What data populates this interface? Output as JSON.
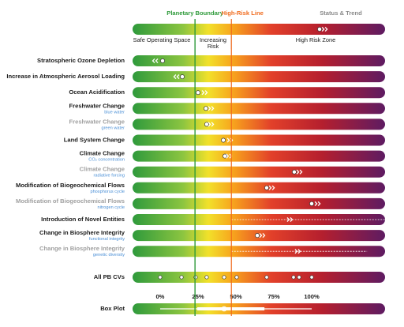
{
  "chart_data": {
    "type": "boundary-status",
    "xlim": [
      -18.2,
      148.4
    ],
    "xticks": [
      {
        "value": 0,
        "label": "0%"
      },
      {
        "value": 25,
        "label": "25%"
      },
      {
        "value": 50,
        "label": "50%"
      },
      {
        "value": 75,
        "label": "75%"
      },
      {
        "value": 100,
        "label": "100%"
      }
    ],
    "boundary": 23,
    "high_risk": 47,
    "boundary_label": "Planetary Boundary",
    "high_risk_label": "High-Risk Line",
    "status_label": "Status & Trend",
    "zones": [
      "Safe Operating Space",
      "Increasing",
      "Risk",
      "High Risk Zone"
    ],
    "legend_status": {
      "value": 105.2,
      "trend": 108.9
    },
    "boundary_color": "#2e9a3a",
    "high_risk_color": "#f06a1c",
    "status_color": "#8a8a8a",
    "rows": [
      {
        "label": "Stratospheric Ozone Depletion",
        "value": 1.6,
        "trend": -3.6,
        "primary": true
      },
      {
        "label": "Increase in Atmospheric Aerosol Loading",
        "value": 14.6,
        "trend": 10.4,
        "primary": true
      },
      {
        "label": "Ocean Acidification",
        "value": 25,
        "trend": 29.7,
        "primary": true
      },
      {
        "label": "Freshwater Change",
        "sublabel": "blue water",
        "value": 30.2,
        "trend": 33.9,
        "primary": true
      },
      {
        "label": "Freshwater Change",
        "sublabel": "green water",
        "value": 30.7,
        "trend": 33.9,
        "primary": false
      },
      {
        "label": "Land System Change",
        "value": 41.7,
        "trend": 46.4,
        "primary": true
      },
      {
        "label": "Climate Change",
        "sublabel": "CO₂ concentration",
        "value": 42.7,
        "trend": 45.8,
        "primary": true
      },
      {
        "label": "Climate Change",
        "sublabel": "radiative forcing",
        "value": 88.5,
        "trend": 92.2,
        "primary": false
      },
      {
        "label": "Modification of Biogeochemical Flows",
        "sublabel": "phosphorus cycle",
        "value": 70.3,
        "trend": 74,
        "primary": true
      },
      {
        "label": "Modification of Biogeochemical Flows",
        "sublabel": "nitrogen cycle",
        "value": 100,
        "trend": 104.2,
        "primary": false
      },
      {
        "label": "Introduction of Novel Entities",
        "trend": 85.9,
        "dashed": [
          47,
          148.4
        ],
        "primary": true
      },
      {
        "label": "Change in Biosphere Integrity",
        "sublabel": "functional integrity",
        "value": 64.1,
        "trend": 67.7,
        "primary": true
      },
      {
        "label": "Change in Biosphere Integrity",
        "sublabel": "genetic diversity",
        "trend": 91.1,
        "dashed": [
          47,
          136.5
        ],
        "primary": false
      }
    ],
    "all_label": "All PB CVs",
    "all_values": [
      0,
      14.1,
      23.4,
      30.7,
      42.2,
      50.5,
      70.3,
      88,
      91.7,
      100
    ],
    "box_label": "Box Plot",
    "box": {
      "min": 0,
      "q1": 24.5,
      "median": 42.2,
      "q3": 68.8,
      "max": 100
    }
  }
}
